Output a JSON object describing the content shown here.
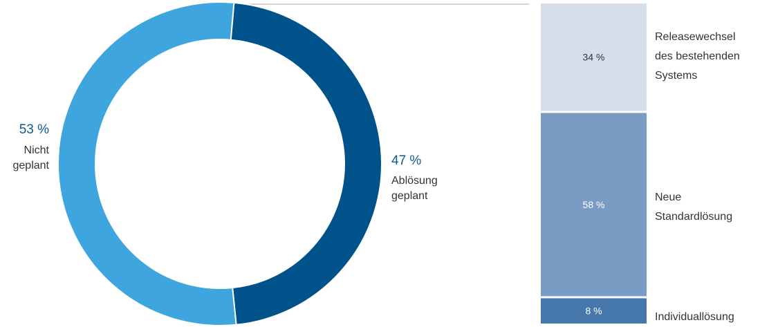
{
  "chart_data": [
    {
      "type": "pie",
      "variant": "donut",
      "slices": [
        {
          "value": 47,
          "label_value": "47 %",
          "label_lines": [
            "Ablösung",
            "geplant"
          ],
          "color": "#00528a"
        },
        {
          "value": 53,
          "label_value": "53 %",
          "label_lines": [
            "Nicht",
            "geplant"
          ],
          "color": "#3fa5de"
        }
      ]
    },
    {
      "type": "bar",
      "variant": "100% stacked column",
      "segments": [
        {
          "value": 34,
          "label_value": "34 %",
          "label_lines": [
            "Releasewechsel",
            "des bestehenden",
            "Systems"
          ],
          "color": "#d6deec",
          "text_color": "#333333"
        },
        {
          "value": 58,
          "label_value": "58 %",
          "label_lines": [
            "Neue",
            "Standardlösung"
          ],
          "color": "#7a9cc4",
          "text_color": "#ffffff"
        },
        {
          "value": 8,
          "label_value": "8 %",
          "label_lines": [
            "Individuallösung"
          ],
          "color": "#4678ac",
          "text_color": "#ffffff"
        }
      ]
    }
  ],
  "colors": {
    "connector_line": "#aaaaaa",
    "percent_text": "#0d5a95",
    "label_text": "#333333"
  }
}
